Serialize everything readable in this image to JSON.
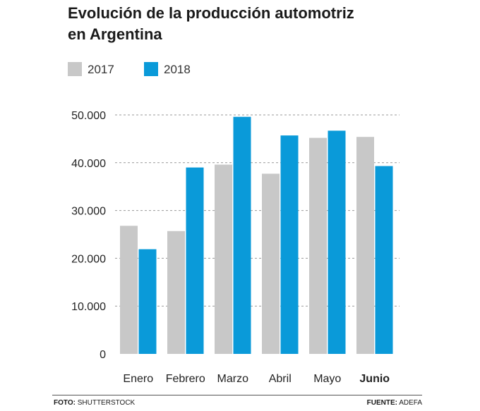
{
  "title": "Evolución de la producción automotriz en Argentina",
  "footer": {
    "photo_label": "FOTO:",
    "photo_value": "SHUTTERSTOCK",
    "source_label": "FUENTE:",
    "source_value": "ADEFA"
  },
  "colors": {
    "series_2017": "#c8c8c8",
    "series_2018": "#0a9ad9",
    "grid": "#999999",
    "text": "#1a1a1a"
  },
  "chart_data": {
    "type": "bar",
    "title": "Evolución de la producción automotriz en Argentina",
    "xlabel": "",
    "ylabel": "",
    "categories": [
      "Enero",
      "Febrero",
      "Marzo",
      "Abril",
      "Mayo",
      "Junio"
    ],
    "highlighted_category": "Junio",
    "series": [
      {
        "name": "2017",
        "values": [
          26800,
          25700,
          39600,
          37700,
          45200,
          45400
        ]
      },
      {
        "name": "2018",
        "values": [
          21900,
          39000,
          49600,
          45700,
          46700,
          39300
        ]
      }
    ],
    "ylim": [
      0,
      50000
    ],
    "yticks": [
      0,
      10000,
      20000,
      30000,
      40000,
      50000
    ],
    "ytick_labels": [
      "0",
      "10.000",
      "20.000",
      "30.000",
      "40.000",
      "50.000"
    ],
    "grid": true,
    "legend_position": "top-left"
  }
}
